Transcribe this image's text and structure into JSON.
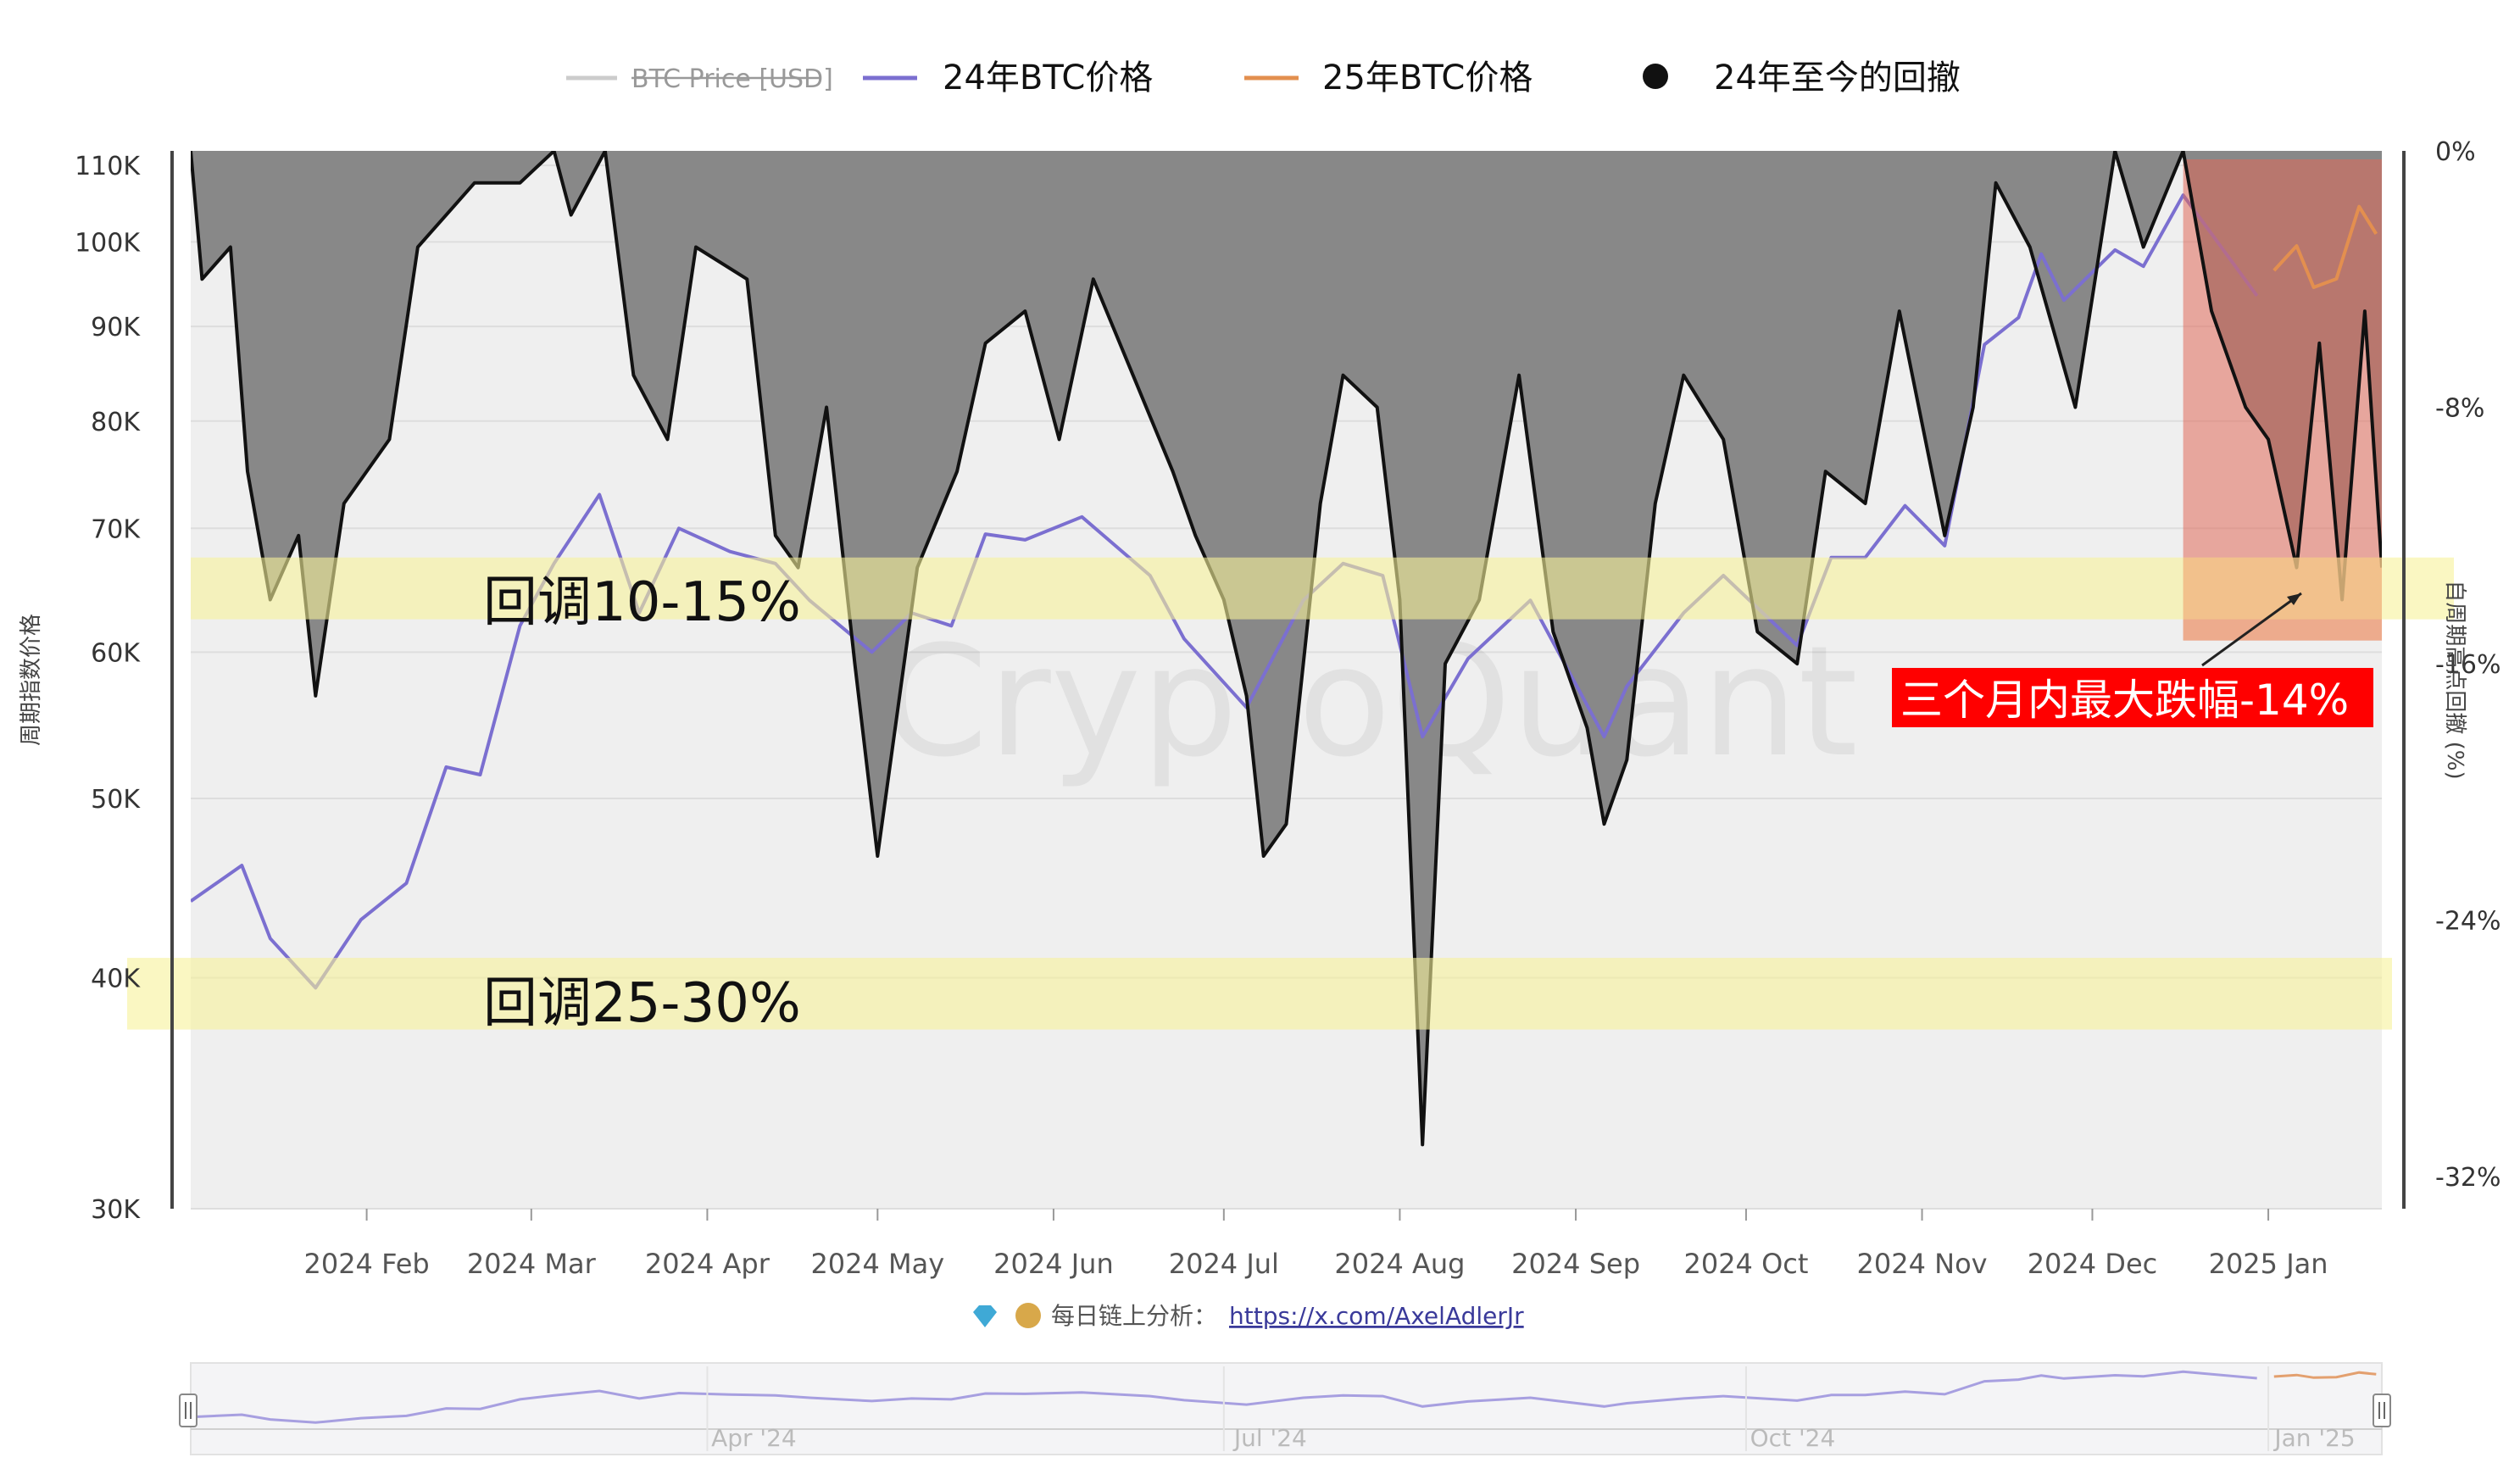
{
  "legend": [
    {
      "label": "BTC Price [USD]",
      "color": "#cccccc",
      "disabled": true
    },
    {
      "label": "24年BTC价格",
      "color": "#7b6fd0"
    },
    {
      "label": "25年BTC价格",
      "color": "#e38f4f"
    },
    {
      "label": "24年至今的回撤",
      "color": "#111111",
      "marker": "dot"
    }
  ],
  "chart_data": {
    "type": "line",
    "xlabel": "",
    "ylabel_left": "周期指数价格",
    "ylabel_right": "自周期高点回撤 (%)",
    "x_ticks": [
      "2024 Feb",
      "2024 Mar",
      "2024 Apr",
      "2024 May",
      "2024 Jun",
      "2024 Jul",
      "2024 Aug",
      "2024 Sep",
      "2024 Oct",
      "2024 Nov",
      "2024 Dec",
      "2025 Jan"
    ],
    "y_left_ticks": [
      "110K",
      "100K",
      "90K",
      "80K",
      "70K",
      "60K",
      "50K",
      "40K",
      "30K"
    ],
    "y_left_scale": "log",
    "y_left_range": [
      30000,
      112000
    ],
    "y_right_ticks": [
      "0%",
      "-8%",
      "-16%",
      "-24%",
      "-32%"
    ],
    "y_right_range": [
      -33,
      0
    ],
    "x_range": [
      "2024-01-01",
      "2025-01-21"
    ],
    "series": [
      {
        "name": "24年BTC价格",
        "color": "#7b6fd0",
        "x": [
          "2024-01-01",
          "2024-01-10",
          "2024-01-15",
          "2024-01-23",
          "2024-01-31",
          "2024-02-08",
          "2024-02-15",
          "2024-02-21",
          "2024-02-28",
          "2024-03-05",
          "2024-03-13",
          "2024-03-20",
          "2024-03-27",
          "2024-04-05",
          "2024-04-13",
          "2024-04-19",
          "2024-04-30",
          "2024-05-07",
          "2024-05-14",
          "2024-05-20",
          "2024-05-27",
          "2024-06-06",
          "2024-06-18",
          "2024-06-24",
          "2024-07-05",
          "2024-07-15",
          "2024-07-22",
          "2024-07-29",
          "2024-08-05",
          "2024-08-13",
          "2024-08-24",
          "2024-09-06",
          "2024-09-10",
          "2024-09-20",
          "2024-09-27",
          "2024-10-10",
          "2024-10-16",
          "2024-10-22",
          "2024-10-29",
          "2024-11-05",
          "2024-11-12",
          "2024-11-18",
          "2024-11-22",
          "2024-11-26",
          "2024-12-05",
          "2024-12-10",
          "2024-12-17",
          "2024-12-30"
        ],
        "values": [
          44000,
          46000,
          42000,
          39500,
          43000,
          45000,
          52000,
          51500,
          62000,
          67000,
          73000,
          63000,
          70000,
          68000,
          67000,
          64000,
          60000,
          63000,
          62000,
          69500,
          69000,
          71000,
          66000,
          61000,
          56000,
          64000,
          67000,
          66000,
          54000,
          59500,
          64000,
          54000,
          57500,
          63000,
          66000,
          60500,
          67500,
          67500,
          72000,
          68500,
          88000,
          91000,
          98500,
          93000,
          99000,
          97000,
          106000,
          93500
        ]
      },
      {
        "name": "25年BTC价格",
        "color": "#e38f4f",
        "x": [
          "2025-01-02",
          "2025-01-06",
          "2025-01-09",
          "2025-01-13",
          "2025-01-17",
          "2025-01-20"
        ],
        "values": [
          96500,
          99500,
          94500,
          95500,
          104500,
          101000
        ]
      },
      {
        "name": "24年至今的回撤",
        "color": "#111111",
        "axis": "right",
        "x": [
          "2024-01-01",
          "2024-01-03",
          "2024-01-08",
          "2024-01-11",
          "2024-01-15",
          "2024-01-20",
          "2024-01-23",
          "2024-01-28",
          "2024-02-05",
          "2024-02-10",
          "2024-02-20",
          "2024-02-28",
          "2024-03-05",
          "2024-03-08",
          "2024-03-14",
          "2024-03-19",
          "2024-03-25",
          "2024-03-30",
          "2024-04-08",
          "2024-04-13",
          "2024-04-17",
          "2024-04-22",
          "2024-04-27",
          "2024-05-01",
          "2024-05-08",
          "2024-05-15",
          "2024-05-20",
          "2024-05-27",
          "2024-06-02",
          "2024-06-08",
          "2024-06-15",
          "2024-06-22",
          "2024-06-26",
          "2024-07-01",
          "2024-07-05",
          "2024-07-08",
          "2024-07-12",
          "2024-07-18",
          "2024-07-22",
          "2024-07-28",
          "2024-08-01",
          "2024-08-05",
          "2024-08-09",
          "2024-08-15",
          "2024-08-22",
          "2024-08-28",
          "2024-09-03",
          "2024-09-06",
          "2024-09-10",
          "2024-09-15",
          "2024-09-20",
          "2024-09-27",
          "2024-10-03",
          "2024-10-10",
          "2024-10-15",
          "2024-10-22",
          "2024-10-28",
          "2024-11-05",
          "2024-11-10",
          "2024-11-14",
          "2024-11-20",
          "2024-11-28",
          "2024-12-05",
          "2024-12-10",
          "2024-12-17",
          "2024-12-22",
          "2024-12-28",
          "2025-01-01",
          "2025-01-06",
          "2025-01-10",
          "2025-01-14",
          "2025-01-18",
          "2025-01-21"
        ],
        "values": [
          0,
          -4,
          -3,
          -10,
          -14,
          -12,
          -17,
          -11,
          -9,
          -3,
          -1,
          -1,
          0,
          -2,
          0,
          -7,
          -9,
          -3,
          -4,
          -12,
          -13,
          -8,
          -16,
          -22,
          -13,
          -10,
          -6,
          -5,
          -9,
          -4,
          -7,
          -10,
          -12,
          -14,
          -17,
          -22,
          -21,
          -11,
          -7,
          -8,
          -14,
          -31,
          -16,
          -14,
          -7,
          -15,
          -18,
          -21,
          -19,
          -11,
          -7,
          -9,
          -15,
          -16,
          -10,
          -11,
          -5,
          -12,
          -8,
          -1,
          -3,
          -8,
          0,
          -3,
          0,
          -5,
          -8,
          -9,
          -13,
          -6,
          -14,
          -5,
          -13
        ]
      }
    ],
    "bands": [
      {
        "label": "回调10-15%",
        "y_from": 62500,
        "y_to": 67500,
        "color": "#f5f0a0"
      },
      {
        "label": "回调25-30%",
        "y_from": 37500,
        "y_to": 41000,
        "color": "#f5f0a0"
      }
    ],
    "highlight": {
      "x_from": "2024-12-17",
      "x_to": "2025-01-21",
      "color": "#e06a5a"
    },
    "callout": {
      "label": "三个月内最大跌幅-14%",
      "color": "#ff0000"
    },
    "grid": true
  },
  "watermark": "CryptoQuant",
  "credit": {
    "text": "每日链上分析：",
    "link": "https://x.com/AxelAdlerJr"
  },
  "navigator": {
    "ticks": [
      "Apr '24",
      "Jul '24",
      "Oct '24",
      "Jan '25"
    ]
  }
}
